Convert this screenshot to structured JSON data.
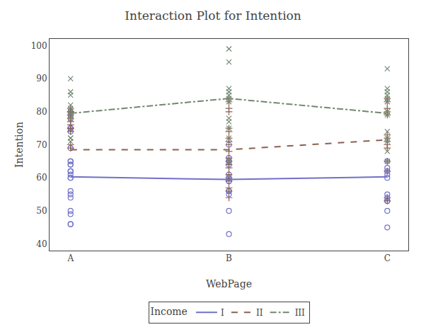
{
  "chart_data": {
    "type": "line",
    "title": "Interaction Plot for Intention",
    "xlabel": "WebPage",
    "ylabel": "Intention",
    "categories": [
      "A",
      "B",
      "C"
    ],
    "ylim": [
      38,
      102
    ],
    "yticks": [
      40,
      50,
      60,
      70,
      80,
      90,
      100
    ],
    "grid": false,
    "legend": "bottom",
    "legend_title": "Income",
    "series": [
      {
        "name": "I",
        "color": "#7070c8",
        "line_style": "solid",
        "marker": "circle-open",
        "values": [
          60.3,
          59.5,
          60.3
        ],
        "points": [
          [
            60,
            61,
            62,
            65,
            65,
            64,
            56,
            55,
            54,
            50,
            49,
            46,
            46,
            60,
            79,
            80,
            78,
            75,
            75,
            74,
            69,
            64,
            62
          ],
          [
            59,
            60,
            61,
            56,
            55,
            50,
            43,
            65,
            64,
            59,
            65,
            66,
            70,
            56
          ],
          [
            60,
            61,
            62,
            63,
            65,
            53,
            53,
            54,
            50,
            45,
            55
          ]
        ]
      },
      {
        "name": "II",
        "color": "#8b6050",
        "line_style": "dash",
        "marker": "plus",
        "values": [
          68.5,
          68.5,
          71.5
        ],
        "points": [
          [
            69,
            70,
            74,
            75,
            75,
            76,
            77,
            78,
            79,
            80,
            80,
            81
          ],
          [
            54,
            56,
            57,
            59,
            60,
            61,
            63,
            64,
            65,
            66,
            68,
            70,
            71,
            72,
            74,
            75,
            80,
            81,
            83,
            84
          ],
          [
            53,
            54,
            62,
            65,
            69,
            70,
            71,
            72,
            73,
            79,
            80,
            81,
            83,
            84
          ]
        ]
      },
      {
        "name": "III",
        "color": "#708870",
        "line_style": "dashdot",
        "marker": "x",
        "values": [
          79.5,
          84.0,
          79.5
        ],
        "points": [
          [
            86,
            85,
            82,
            81,
            80,
            79,
            78,
            72,
            72,
            71,
            90
          ],
          [
            99,
            95,
            87,
            86,
            85,
            84,
            83,
            78,
            77,
            75,
            72,
            65
          ],
          [
            93,
            87,
            86,
            85,
            84,
            83,
            80,
            79,
            74,
            72,
            71,
            68,
            65
          ]
        ]
      }
    ]
  }
}
